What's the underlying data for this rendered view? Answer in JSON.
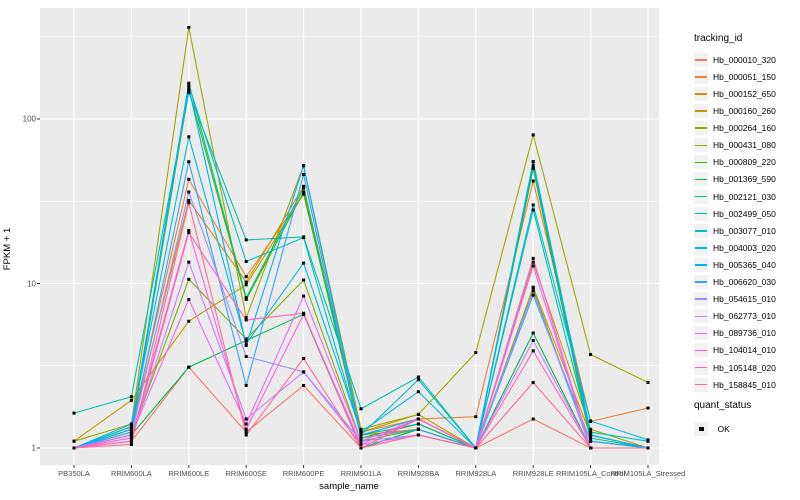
{
  "figure": {
    "panel_bg": "#EBEBEB",
    "grid_color": "#FFFFFF",
    "point_color": "#000000",
    "tick_text_color": "#4D4D4D"
  },
  "legend": {
    "tracking_title": "tracking_id",
    "quant_title": "quant_status",
    "quant_label": "OK"
  },
  "chart_data": {
    "type": "line",
    "title": "",
    "xlabel": "sample_name",
    "ylabel": "FPKM + 1",
    "y_scale": "log10",
    "ylim": [
      1,
      473
    ],
    "y_ticks": [
      1,
      10,
      100
    ],
    "grid": true,
    "legend_position": "right",
    "point_marker": "black-square",
    "categories": [
      "PB350LA",
      "RRIM600LA",
      "RRIM600LE",
      "RRIM600SE",
      "RRIM600PE",
      "RRIM901LA",
      "RRIM928BA",
      "RRIM928LA",
      "RRIM928LE",
      "RRIM105LA_Control",
      "RRIM105LA_Stressed"
    ],
    "series": [
      {
        "name": "Hb_000010_320",
        "color": "#F8766D",
        "values": [
          1,
          1.1,
          3.1,
          1.25,
          2.4,
          1,
          1.2,
          1,
          1.5,
          1,
          1
        ]
      },
      {
        "name": "Hb_000051_150",
        "color": "#EA8331",
        "values": [
          1,
          1.35,
          43,
          11,
          35,
          1.25,
          1.5,
          1.55,
          42,
          1.45,
          1.75
        ]
      },
      {
        "name": "Hb_000152_650",
        "color": "#D89000",
        "values": [
          1,
          1.3,
          32,
          10.2,
          39,
          1.2,
          1.3,
          1,
          9.5,
          1.2,
          1
        ]
      },
      {
        "name": "Hb_000160_260",
        "color": "#C09B00",
        "values": [
          1.1,
          1.95,
          5.9,
          9.8,
          35,
          1.25,
          1.6,
          1,
          13.5,
          1.3,
          1
        ]
      },
      {
        "name": "Hb_000264_160",
        "color": "#A3A500",
        "values": [
          1.1,
          1.4,
          360,
          6.2,
          52,
          1.3,
          1.6,
          3.8,
          80,
          3.7,
          2.5
        ]
      },
      {
        "name": "Hb_000431_080",
        "color": "#7CAE00",
        "values": [
          1,
          1.2,
          10.6,
          4.6,
          10.5,
          1.1,
          1.3,
          1,
          9.3,
          1,
          1
        ]
      },
      {
        "name": "Hb_000809_220",
        "color": "#39B600",
        "values": [
          1,
          1.25,
          150,
          8,
          36,
          1.15,
          1.4,
          1,
          50,
          1.1,
          1
        ]
      },
      {
        "name": "Hb_001369_590",
        "color": "#00BB4E",
        "values": [
          1,
          1.2,
          3.1,
          4.5,
          6.5,
          1,
          1.3,
          1,
          5,
          1,
          1
        ]
      },
      {
        "name": "Hb_002121_030",
        "color": "#00C087",
        "values": [
          1,
          1.3,
          165,
          8.2,
          38,
          1.2,
          1.4,
          1,
          52,
          1.15,
          1
        ]
      },
      {
        "name": "Hb_002499_050",
        "color": "#00C1AB",
        "values": [
          1.63,
          2.05,
          145,
          18.4,
          19.2,
          1.73,
          2.7,
          1,
          28,
          1.2,
          1
        ]
      },
      {
        "name": "Hb_003077_010",
        "color": "#00BFC4",
        "values": [
          1,
          1.35,
          160,
          13.6,
          19,
          1.2,
          2.6,
          1,
          55,
          1.25,
          1.1
        ]
      },
      {
        "name": "Hb_004003_020",
        "color": "#00BAE0",
        "values": [
          1,
          1.4,
          78,
          4.3,
          13.3,
          1.25,
          2.2,
          1,
          30,
          1.46,
          1.12
        ]
      },
      {
        "name": "Hb_005365_040",
        "color": "#00B0F6",
        "values": [
          1,
          1.3,
          155,
          4.2,
          52,
          1.2,
          1.5,
          1,
          55,
          1.2,
          1
        ]
      },
      {
        "name": "Hb_006620_030",
        "color": "#35A2FF",
        "values": [
          1,
          1.25,
          55,
          2.4,
          46,
          1.15,
          1.3,
          1,
          8.5,
          1.1,
          1
        ]
      },
      {
        "name": "Hb_054615_010",
        "color": "#9590FF",
        "values": [
          1,
          1.2,
          36,
          3.6,
          2.9,
          1.1,
          1.2,
          1,
          9,
          1,
          1
        ]
      },
      {
        "name": "Hb_062773_010",
        "color": "#C77CFF",
        "values": [
          1,
          1.15,
          13.5,
          1.5,
          2.9,
          1.05,
          1.2,
          1,
          4.5,
          1,
          1
        ]
      },
      {
        "name": "Hb_089736_010",
        "color": "#E76BF3",
        "values": [
          1,
          1.2,
          8,
          1.4,
          8.4,
          1.1,
          1.5,
          1,
          12.8,
          1,
          1
        ]
      },
      {
        "name": "Hb_104014_010",
        "color": "#FA62DB",
        "values": [
          1,
          1.15,
          21,
          1.3,
          6.5,
          1.05,
          1.5,
          1,
          14.2,
          1,
          1
        ]
      },
      {
        "name": "Hb_105148_020",
        "color": "#FF62BC",
        "values": [
          1,
          1.1,
          20.4,
          6,
          6.6,
          1,
          1.5,
          1,
          3.9,
          1,
          1
        ]
      },
      {
        "name": "Hb_158845_010",
        "color": "#FF6A98",
        "values": [
          1,
          1.05,
          31,
          1.2,
          3.5,
          1,
          1.2,
          1,
          2.5,
          1,
          1
        ]
      }
    ]
  }
}
